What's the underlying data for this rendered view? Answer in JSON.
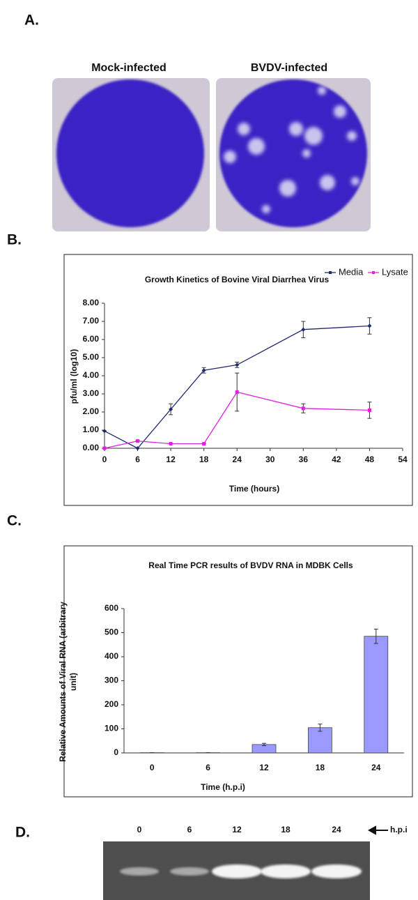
{
  "panel_a": {
    "label": "A.",
    "captions": [
      "Mock-infected",
      "BVDV-infected"
    ]
  },
  "chart_data": [
    {
      "type": "line",
      "panel_label": "B.",
      "title": "Growth Kinetics of Bovine Viral Diarrhea Virus",
      "x_label": "Time (hours)",
      "y_label": "pfu/ml (log10)",
      "x": [
        0,
        6,
        12,
        18,
        24,
        36,
        48
      ],
      "series": [
        {
          "name": "Media",
          "color": "#1f2a6e",
          "marker": "diamond",
          "values": [
            0.95,
            0.0,
            2.15,
            4.3,
            4.6,
            6.55,
            6.75
          ],
          "errors": [
            0,
            0,
            0.3,
            0.15,
            0.15,
            0.45,
            0.45
          ]
        },
        {
          "name": "Lysate",
          "color": "#e020e0",
          "marker": "square",
          "values": [
            0.0,
            0.4,
            0.25,
            0.25,
            3.1,
            2.2,
            2.1
          ],
          "errors": [
            0,
            0,
            0,
            0,
            1.05,
            0.25,
            0.45
          ]
        }
      ],
      "xlim": [
        0,
        54
      ],
      "xticks": [
        0,
        6,
        12,
        18,
        24,
        30,
        36,
        42,
        48,
        54
      ],
      "ylim": [
        0,
        8
      ],
      "yticks": [
        {
          "value": 0,
          "label": "0.00"
        },
        {
          "value": 1,
          "label": "1.00"
        },
        {
          "value": 2,
          "label": "2.00"
        },
        {
          "value": 3,
          "label": "3.00"
        },
        {
          "value": 4,
          "label": "4.00"
        },
        {
          "value": 5,
          "label": "5.00"
        },
        {
          "value": 6,
          "label": "6.00"
        },
        {
          "value": 7,
          "label": "7.00"
        },
        {
          "value": 8,
          "label": "8.00"
        }
      ],
      "grid": false,
      "legend": "top-right"
    },
    {
      "type": "bar",
      "panel_label": "C.",
      "title": "Real Time PCR results of  BVDV RNA in  MDBK Cells",
      "x_label": "Time (h.p.i)",
      "y_label": "Relative Amounts of Viral RNA (arbitrary unit)",
      "categories": [
        "0",
        "6",
        "12",
        "18",
        "24"
      ],
      "values": [
        1,
        1,
        35,
        105,
        485
      ],
      "errors": [
        0,
        0,
        5,
        15,
        30
      ],
      "color": "#9999ff",
      "ylim": [
        0,
        600
      ],
      "yticks": [
        0,
        100,
        200,
        300,
        400,
        500,
        600
      ],
      "grid": false
    }
  ],
  "panel_d": {
    "label": "D.",
    "lanes": [
      "0",
      "6",
      "12",
      "18",
      "24"
    ],
    "arrow_label": "h.p.i"
  }
}
